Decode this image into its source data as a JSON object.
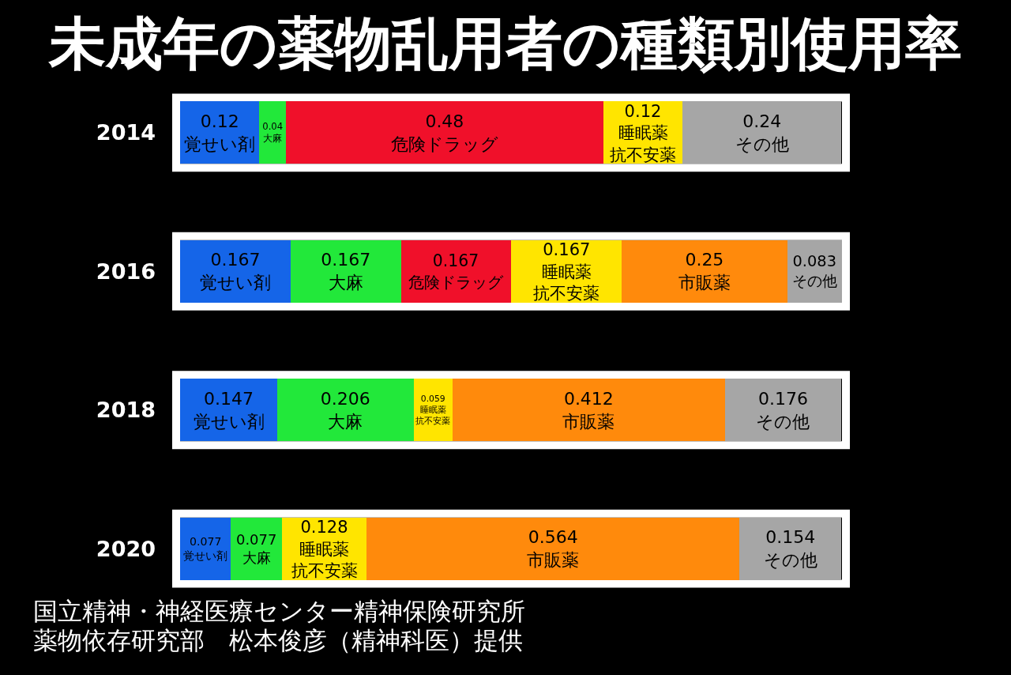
{
  "chart_data": {
    "type": "bar",
    "orientation": "horizontal",
    "stacked": true,
    "data_labels": true,
    "title": "未成年の薬物乱用者の種類別使用率",
    "categories": [
      "2014",
      "2016",
      "2018",
      "2020"
    ],
    "series": [
      {
        "name": "覚せい剤",
        "color": "#1565e8",
        "values": [
          0.12,
          0.167,
          0.147,
          0.077
        ]
      },
      {
        "name": "大麻",
        "color": "#22e83a",
        "values": [
          0.04,
          0.167,
          0.206,
          0.077
        ]
      },
      {
        "name": "危険ドラッグ",
        "color": "#f0102a",
        "values": [
          0.48,
          0.167,
          null,
          null
        ]
      },
      {
        "name": "睡眠薬抗不安薬",
        "color": "#ffe500",
        "values": [
          0.12,
          0.167,
          0.059,
          0.128
        ]
      },
      {
        "name": "市販薬",
        "color": "#ff8a0c",
        "values": [
          null,
          0.25,
          0.412,
          0.564
        ]
      },
      {
        "name": "その他",
        "color": "#a6a6a6",
        "values": [
          0.24,
          0.083,
          0.176,
          0.154
        ]
      }
    ],
    "annotations": [
      "国立精神・神経医療センター精神保険研究所",
      "薬物依存研究部　松本俊彦（精神科医）提供"
    ]
  }
}
